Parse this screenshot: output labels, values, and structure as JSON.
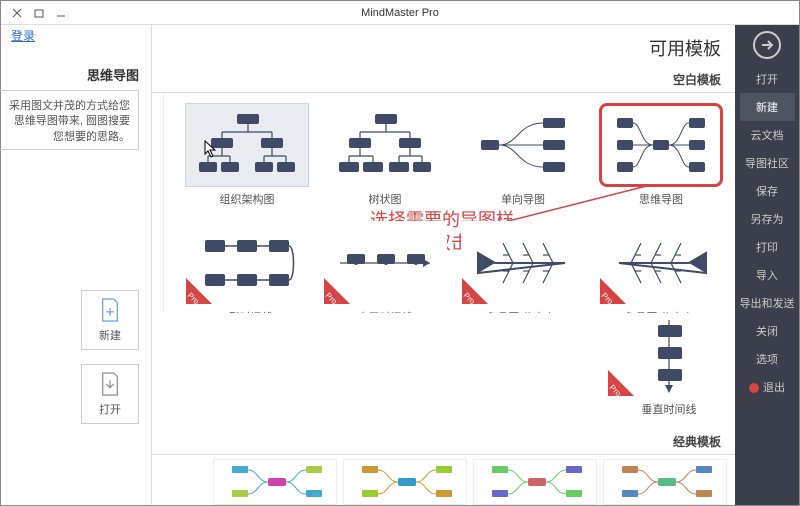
{
  "window": {
    "title": "MindMaster Pro",
    "login": "登录"
  },
  "sidebar": {
    "topIconLabel": "打开",
    "items": [
      {
        "label": "打开"
      },
      {
        "label": "新建",
        "active": true
      },
      {
        "label": "云文档"
      },
      {
        "label": "导图社区"
      },
      {
        "label": "保存"
      },
      {
        "label": "另存为"
      },
      {
        "label": "打印"
      },
      {
        "label": "导入"
      },
      {
        "label": "导出和发送"
      },
      {
        "label": "关闭"
      },
      {
        "label": "选项"
      },
      {
        "label": "退出",
        "exit": true
      }
    ]
  },
  "leftcol": {
    "heading": "思维导图",
    "desc": "采用图文并茂的方式给您思维导图带来, 囫图搜要您想要的思路。"
  },
  "quick": {
    "new": "新建",
    "open": "打开"
  },
  "main": {
    "header": "可用模板",
    "section1": "空白模板",
    "section2": "经典模板"
  },
  "templates": [
    {
      "label": "思维导图",
      "selected": true
    },
    {
      "label": "单向导图"
    },
    {
      "label": "树状图"
    },
    {
      "label": "组织架构图",
      "hover": true,
      "cursor": true
    },
    {
      "label": "鱼骨图(头向右)",
      "pro": true
    },
    {
      "label": "鱼骨图(头向左)",
      "pro": true
    },
    {
      "label": "水平时间线",
      "pro": true
    },
    {
      "label": "S型时间线",
      "pro": true
    }
  ],
  "templates_row3": [
    {
      "label": "垂直时间线",
      "pro": true
    }
  ],
  "annotation": {
    "line1": "选择需要的导图样",
    "line2": "式，双击新建。"
  },
  "colors": {
    "node": "#3e4a66",
    "accent": "#d64545",
    "sidebar": "#3a3f4b"
  }
}
